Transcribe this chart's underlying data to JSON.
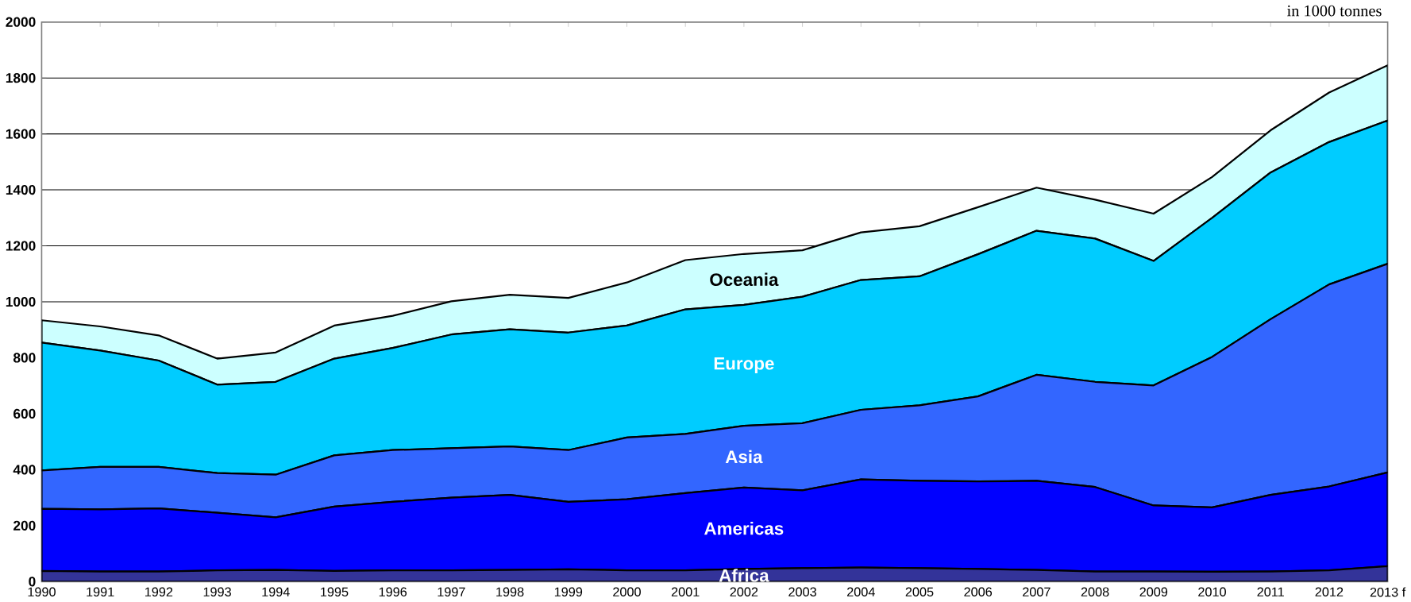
{
  "chart_data": {
    "type": "area",
    "stacked": true,
    "legend": false,
    "grid": "y",
    "categories": [
      "1990",
      "1991",
      "1992",
      "1993",
      "1994",
      "1995",
      "1996",
      "1997",
      "1998",
      "1999",
      "2000",
      "2001",
      "2002",
      "2003",
      "2004",
      "2005",
      "2006",
      "2007",
      "2008",
      "2009",
      "2010",
      "2011",
      "2012",
      "2013 f"
    ],
    "ylim": [
      0,
      2000
    ],
    "yticks": [
      0,
      200,
      400,
      600,
      800,
      1000,
      1200,
      1400,
      1600,
      1800,
      2000
    ],
    "annotations": [
      "in 1000 tonnes"
    ],
    "series": [
      {
        "name": "Africa",
        "color": "#333399",
        "values": [
          38,
          36,
          36,
          40,
          42,
          38,
          40,
          40,
          42,
          44,
          40,
          40,
          45,
          48,
          50,
          48,
          45,
          42,
          36,
          36,
          35,
          36,
          40,
          55
        ]
      },
      {
        "name": "Americas",
        "color": "#0000ff",
        "values": [
          222,
          222,
          226,
          206,
          188,
          230,
          245,
          260,
          268,
          241,
          254,
          276,
          291,
          278,
          315,
          312,
          313,
          318,
          302,
          236,
          230,
          274,
          300,
          335
        ]
      },
      {
        "name": "Asia",
        "color": "#3366ff",
        "values": [
          137,
          152,
          148,
          142,
          152,
          183,
          185,
          177,
          173,
          185,
          221,
          212,
          221,
          240,
          249,
          270,
          304,
          379,
          376,
          429,
          538,
          628,
          722,
          746
        ]
      },
      {
        "name": "Europe",
        "color": "#00ccff",
        "values": [
          457,
          416,
          380,
          316,
          332,
          346,
          365,
          406,
          419,
          420,
          400,
          445,
          432,
          452,
          464,
          461,
          508,
          515,
          512,
          445,
          497,
          524,
          509,
          512
        ]
      },
      {
        "name": "Oceania",
        "color": "#ccffff",
        "values": [
          80,
          86,
          90,
          93,
          105,
          118,
          115,
          119,
          123,
          124,
          154,
          176,
          182,
          166,
          170,
          179,
          168,
          154,
          139,
          169,
          146,
          151,
          177,
          197
        ]
      }
    ]
  }
}
